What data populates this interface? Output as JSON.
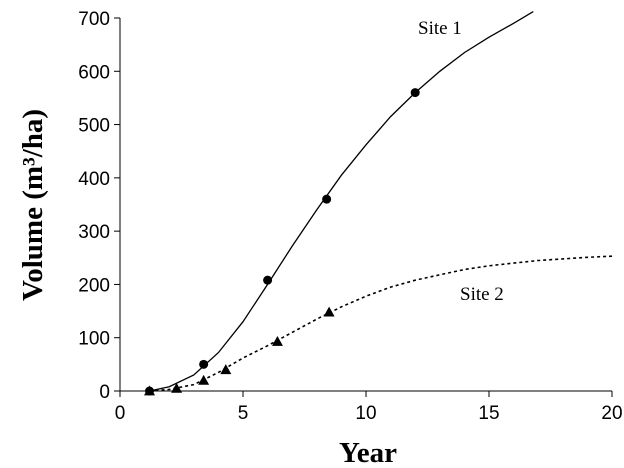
{
  "chart_data": {
    "type": "line",
    "title": "",
    "xlabel": "Year",
    "ylabel": "Volume  (m³/ha)",
    "xlim": [
      0,
      20
    ],
    "ylim": [
      0,
      700
    ],
    "xticks": [
      0,
      5,
      10,
      15,
      20
    ],
    "yticks": [
      0,
      100,
      200,
      300,
      400,
      500,
      600,
      700
    ],
    "grid": false,
    "series": [
      {
        "name": "Site 1",
        "line_style": "solid",
        "marker": "circle",
        "points": [
          [
            1.2,
            0
          ],
          [
            3.4,
            50
          ],
          [
            6.0,
            208
          ],
          [
            8.4,
            360
          ],
          [
            12.0,
            560
          ]
        ],
        "curve": [
          [
            1.2,
            0
          ],
          [
            2.0,
            8
          ],
          [
            3.0,
            30
          ],
          [
            4.0,
            72
          ],
          [
            5.0,
            130
          ],
          [
            6.0,
            200
          ],
          [
            7.0,
            272
          ],
          [
            8.0,
            340
          ],
          [
            9.0,
            405
          ],
          [
            10.0,
            462
          ],
          [
            11.0,
            515
          ],
          [
            12.0,
            560
          ],
          [
            13.0,
            600
          ],
          [
            14.0,
            635
          ],
          [
            15.0,
            664
          ],
          [
            16.0,
            690
          ],
          [
            16.8,
            712
          ]
        ],
        "color": "#000000"
      },
      {
        "name": "Site 2",
        "line_style": "dotted",
        "marker": "triangle",
        "points": [
          [
            1.2,
            0
          ],
          [
            2.3,
            5
          ],
          [
            3.4,
            20
          ],
          [
            4.3,
            40
          ],
          [
            6.4,
            93
          ],
          [
            8.5,
            148
          ]
        ],
        "curve": [
          [
            1.2,
            0
          ],
          [
            2.0,
            3
          ],
          [
            3.0,
            12
          ],
          [
            4.0,
            35
          ],
          [
            5.0,
            62
          ],
          [
            6.0,
            85
          ],
          [
            7.0,
            110
          ],
          [
            8.0,
            135
          ],
          [
            9.0,
            158
          ],
          [
            10.0,
            178
          ],
          [
            11.0,
            195
          ],
          [
            12.0,
            208
          ],
          [
            13.0,
            218
          ],
          [
            14.0,
            228
          ],
          [
            15.0,
            235
          ],
          [
            16.0,
            240
          ],
          [
            17.0,
            245
          ],
          [
            18.0,
            248
          ],
          [
            19.0,
            251
          ],
          [
            20.0,
            253
          ]
        ],
        "color": "#000000"
      }
    ]
  },
  "labels": {
    "site1": "Site 1",
    "site2": "Site 2"
  }
}
